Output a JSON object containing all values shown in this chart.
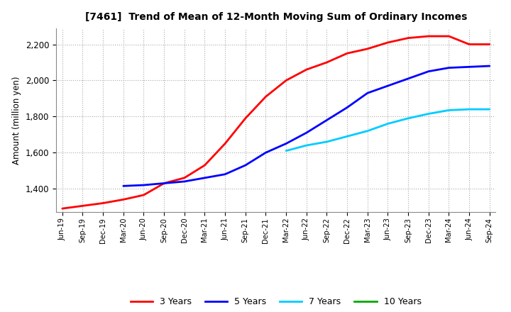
{
  "title": "[7461]  Trend of Mean of 12-Month Moving Sum of Ordinary Incomes",
  "ylabel": "Amount (million yen)",
  "ylim": [
    1270,
    2290
  ],
  "yticks": [
    1400,
    1600,
    1800,
    2000,
    2200
  ],
  "background_color": "#ffffff",
  "plot_bg_color": "#ffffff",
  "grid_color": "#aaaaaa",
  "x_labels": [
    "Jun-19",
    "Sep-19",
    "Dec-19",
    "Mar-20",
    "Jun-20",
    "Sep-20",
    "Dec-20",
    "Mar-21",
    "Jun-21",
    "Sep-21",
    "Dec-21",
    "Mar-22",
    "Jun-22",
    "Sep-22",
    "Dec-22",
    "Mar-23",
    "Jun-23",
    "Sep-23",
    "Dec-23",
    "Mar-24",
    "Jun-24",
    "Sep-24"
  ],
  "series": [
    {
      "label": "3 Years",
      "color": "#ff0000",
      "linewidth": 2.0,
      "data_x": [
        0,
        1,
        2,
        3,
        4,
        5,
        6,
        7,
        8,
        9,
        10,
        11,
        12,
        13,
        14,
        15,
        16,
        17,
        18,
        19,
        20,
        21
      ],
      "data_y": [
        1290,
        1305,
        1320,
        1340,
        1365,
        1430,
        1460,
        1530,
        1650,
        1790,
        1910,
        2000,
        2060,
        2100,
        2150,
        2175,
        2210,
        2235,
        2245,
        2245,
        2200,
        2200
      ]
    },
    {
      "label": "5 Years",
      "color": "#0000ff",
      "linewidth": 2.0,
      "data_x": [
        3,
        4,
        5,
        6,
        7,
        8,
        9,
        10,
        11,
        12,
        13,
        14,
        15,
        16,
        17,
        18,
        19,
        20,
        21
      ],
      "data_y": [
        1415,
        1420,
        1430,
        1440,
        1460,
        1480,
        1530,
        1600,
        1650,
        1710,
        1780,
        1850,
        1930,
        1970,
        2010,
        2050,
        2070,
        2075,
        2080
      ]
    },
    {
      "label": "7 Years",
      "color": "#00ccff",
      "linewidth": 2.0,
      "data_x": [
        11,
        12,
        13,
        14,
        15,
        16,
        17,
        18,
        19,
        20,
        21
      ],
      "data_y": [
        1610,
        1640,
        1660,
        1690,
        1720,
        1760,
        1790,
        1815,
        1835,
        1840,
        1840
      ]
    },
    {
      "label": "10 Years",
      "color": "#00aa00",
      "linewidth": 2.0,
      "data_x": [],
      "data_y": []
    }
  ],
  "legend_colors": [
    "#ff0000",
    "#0000ff",
    "#00ccff",
    "#00aa00"
  ],
  "legend_labels": [
    "3 Years",
    "5 Years",
    "7 Years",
    "10 Years"
  ]
}
